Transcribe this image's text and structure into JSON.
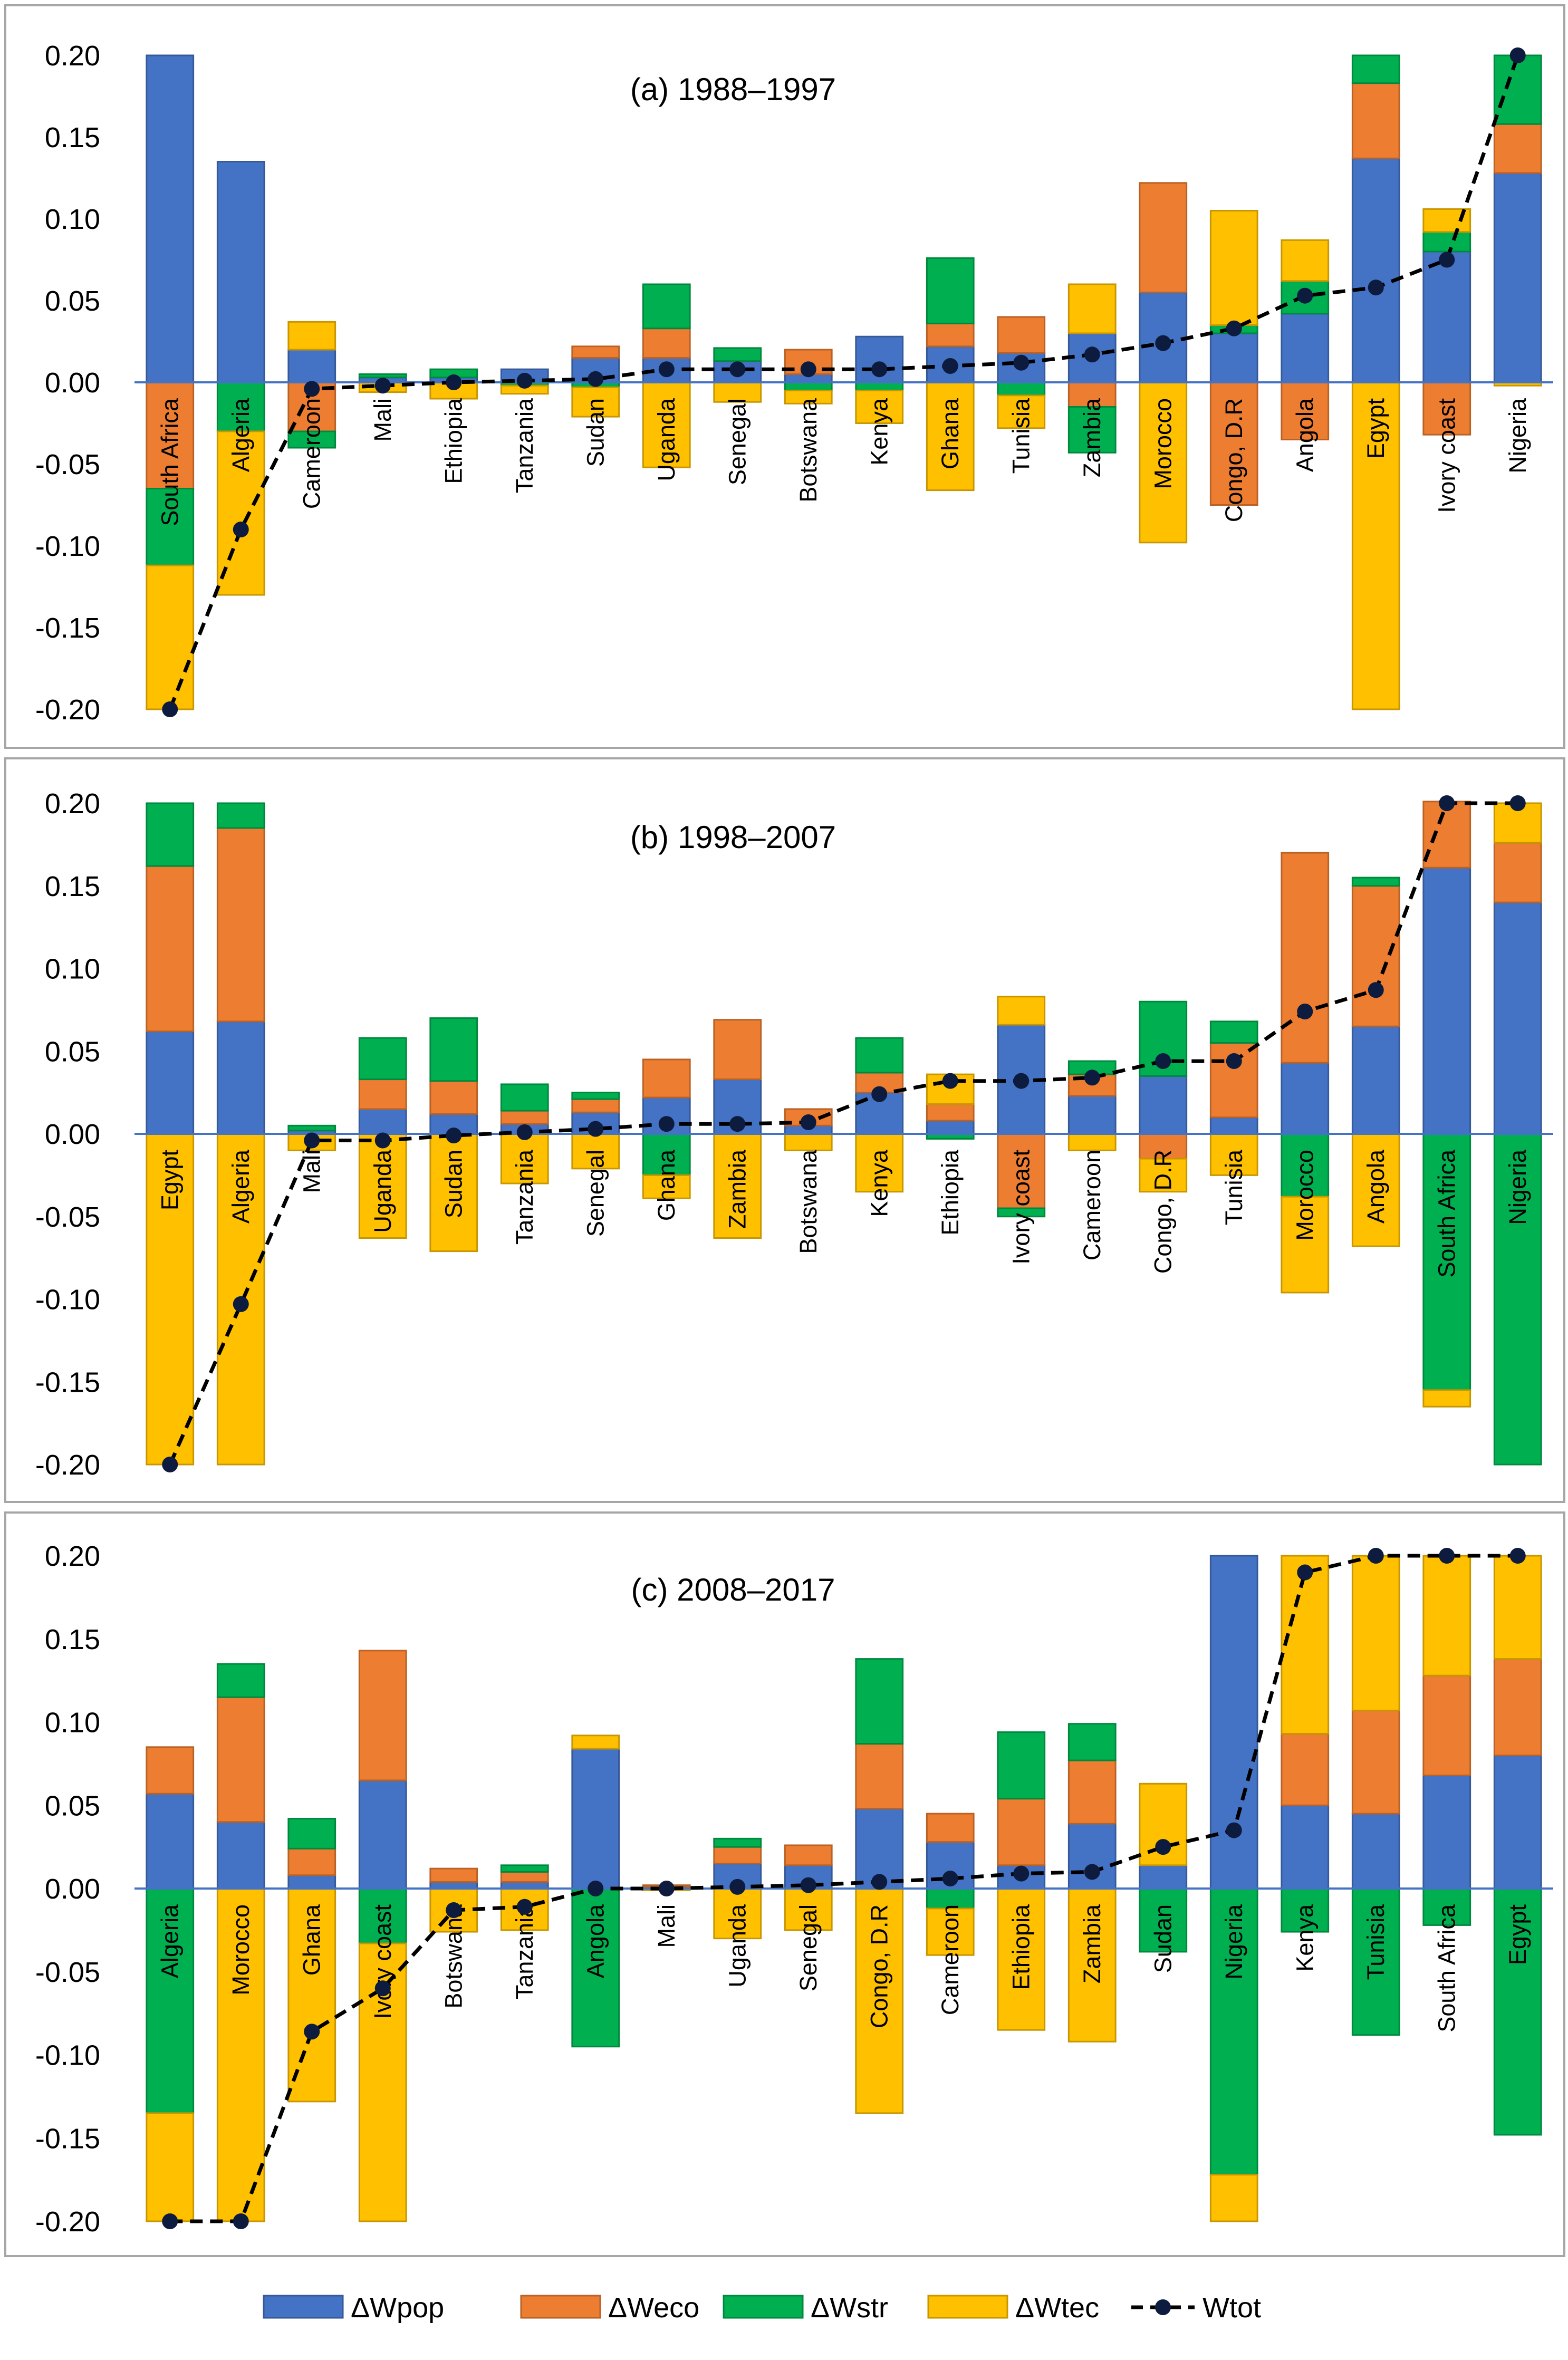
{
  "chart_data": {
    "type": "bar",
    "stacked": true,
    "series_names": [
      "ΔWpop",
      "ΔWeco",
      "ΔWstr",
      "ΔWtec"
    ],
    "line_series_name": "Wtot",
    "colors": {
      "ΔWpop": "#4472c4",
      "ΔWeco": "#ed7d31",
      "ΔWstr": "#00b050",
      "ΔWtec": "#ffc000",
      "Wtot": "#0d1b3e"
    },
    "ylim": [
      -0.2,
      0.2
    ],
    "yticks": [
      "0.20",
      "0.15",
      "0.10",
      "0.05",
      "0.00",
      "-0.05",
      "-0.10",
      "-0.15",
      "-0.20"
    ],
    "legend_position": "bottom",
    "panels": [
      {
        "title": "(a) 1988–1997",
        "categories": [
          "South Africa",
          "Algeria",
          "Cameroon",
          "Mali",
          "Ethiopia",
          "Tanzania",
          "Sudan",
          "Uganda",
          "Senegal",
          "Botswana",
          "Kenya",
          "Ghana",
          "Tunisia",
          "Zambia",
          "Morocco",
          "Congo, D.R",
          "Angola",
          "Egypt",
          "Ivory coast",
          "Nigeria"
        ],
        "series": [
          {
            "name": "ΔWpop",
            "values": [
              0.2,
              0.135,
              0.02,
              0.003,
              0.003,
              0.008,
              0.015,
              0.015,
              0.013,
              0.005,
              0.028,
              0.022,
              0.018,
              0.03,
              0.055,
              0.03,
              0.042,
              0.137,
              0.08,
              0.128
            ]
          },
          {
            "name": "ΔWeco",
            "values": [
              -0.065,
              0.0,
              -0.03,
              0.0,
              0.0,
              0.0,
              0.007,
              0.018,
              0.0,
              0.015,
              0.0,
              0.014,
              0.022,
              -0.015,
              0.067,
              -0.075,
              -0.035,
              0.046,
              -0.032,
              0.03
            ]
          },
          {
            "name": "ΔWstr",
            "values": [
              -0.047,
              -0.03,
              -0.01,
              0.002,
              0.005,
              -0.002,
              -0.003,
              0.027,
              0.008,
              -0.005,
              -0.005,
              0.04,
              -0.008,
              -0.028,
              0.0,
              0.005,
              0.02,
              0.017,
              0.012,
              0.042
            ]
          },
          {
            "name": "ΔWtec",
            "values": [
              -0.088,
              -0.1,
              0.017,
              -0.006,
              -0.01,
              -0.005,
              -0.018,
              -0.052,
              -0.012,
              -0.008,
              -0.02,
              -0.066,
              -0.02,
              0.03,
              -0.098,
              0.07,
              0.025,
              -0.2,
              0.014,
              -0.002
            ]
          }
        ],
        "wtot": [
          -0.2,
          -0.09,
          -0.004,
          -0.002,
          0.0,
          0.001,
          0.002,
          0.008,
          0.008,
          0.008,
          0.008,
          0.01,
          0.012,
          0.017,
          0.024,
          0.033,
          0.053,
          0.058,
          0.075,
          0.2
        ]
      },
      {
        "title": "(b) 1998–2007",
        "categories": [
          "Egypt",
          "Algeria",
          "Mali",
          "Uganda",
          "Sudan",
          "Tanzania",
          "Senegal",
          "Ghana",
          "Zambia",
          "Botswana",
          "Kenya",
          "Ethiopia",
          "Ivory coast",
          "Cameroon",
          "Congo, D.R",
          "Tunisia",
          "Morocco",
          "Angola",
          "South Africa",
          "Nigeria"
        ],
        "series": [
          {
            "name": "ΔWpop",
            "values": [
              0.062,
              0.068,
              0.002,
              0.015,
              0.012,
              0.006,
              0.013,
              0.022,
              0.033,
              0.005,
              0.025,
              0.008,
              0.066,
              0.023,
              0.035,
              0.01,
              0.043,
              0.065,
              0.161,
              0.14
            ]
          },
          {
            "name": "ΔWeco",
            "values": [
              0.1,
              0.117,
              0.0,
              0.018,
              0.02,
              0.008,
              0.008,
              0.023,
              0.036,
              0.01,
              0.012,
              0.01,
              -0.045,
              0.013,
              -0.015,
              0.045,
              0.127,
              0.085,
              0.04,
              0.036
            ]
          },
          {
            "name": "ΔWstr",
            "values": [
              0.038,
              0.015,
              0.003,
              0.025,
              0.038,
              0.016,
              0.004,
              -0.025,
              0.0,
              0.0,
              0.021,
              -0.003,
              -0.005,
              0.008,
              0.045,
              0.013,
              -0.038,
              0.005,
              -0.155,
              -0.2
            ]
          },
          {
            "name": "ΔWtec",
            "values": [
              -0.2,
              -0.2,
              -0.01,
              -0.063,
              -0.071,
              -0.03,
              -0.021,
              -0.014,
              -0.063,
              -0.01,
              -0.035,
              0.018,
              0.017,
              -0.01,
              -0.02,
              -0.025,
              -0.058,
              -0.068,
              -0.01,
              0.024
            ]
          }
        ],
        "wtot": [
          -0.2,
          -0.103,
          -0.004,
          -0.004,
          -0.001,
          0.001,
          0.003,
          0.006,
          0.006,
          0.007,
          0.024,
          0.032,
          0.032,
          0.034,
          0.044,
          0.044,
          0.074,
          0.087,
          0.2,
          0.2
        ]
      },
      {
        "title": "(c) 2008–2017",
        "categories": [
          "Algeria",
          "Morocco",
          "Ghana",
          "Ivory coast",
          "Botswana",
          "Tanzania",
          "Angola",
          "Mali",
          "Uganda",
          "Senegal",
          "Congo, D.R",
          "Cameroon",
          "Ethiopia",
          "Zambia",
          "Sudan",
          "Nigeria",
          "Kenya",
          "Tunisia",
          "South Africa",
          "Egypt"
        ],
        "series": [
          {
            "name": "ΔWpop",
            "values": [
              0.057,
              0.04,
              0.008,
              0.065,
              0.004,
              0.004,
              0.084,
              0.001,
              0.015,
              0.014,
              0.048,
              0.028,
              0.014,
              0.039,
              0.014,
              0.2,
              0.05,
              0.045,
              0.068,
              0.08
            ]
          },
          {
            "name": "ΔWeco",
            "values": [
              0.028,
              0.075,
              0.016,
              0.078,
              0.008,
              0.006,
              0.0,
              0.001,
              0.01,
              0.012,
              0.039,
              0.017,
              0.04,
              0.038,
              0.0,
              0.0,
              0.043,
              0.062,
              0.06,
              0.058
            ]
          },
          {
            "name": "ΔWstr",
            "values": [
              -0.135,
              0.02,
              0.018,
              -0.033,
              0.0,
              0.004,
              -0.095,
              0.0,
              0.005,
              0.0,
              0.051,
              -0.012,
              0.04,
              0.022,
              -0.038,
              -0.172,
              -0.026,
              -0.088,
              -0.022,
              -0.148
            ]
          },
          {
            "name": "ΔWtec",
            "values": [
              -0.065,
              -0.2,
              -0.128,
              -0.167,
              -0.026,
              -0.025,
              0.008,
              -0.001,
              -0.03,
              -0.025,
              -0.135,
              -0.028,
              -0.085,
              -0.092,
              0.049,
              -0.028,
              0.107,
              0.093,
              0.072,
              0.062
            ]
          }
        ],
        "wtot": [
          -0.2,
          -0.2,
          -0.086,
          -0.06,
          -0.013,
          -0.011,
          0.0,
          0.0,
          0.001,
          0.002,
          0.004,
          0.006,
          0.009,
          0.01,
          0.025,
          0.035,
          0.19,
          0.2,
          0.2,
          0.2
        ]
      }
    ]
  }
}
